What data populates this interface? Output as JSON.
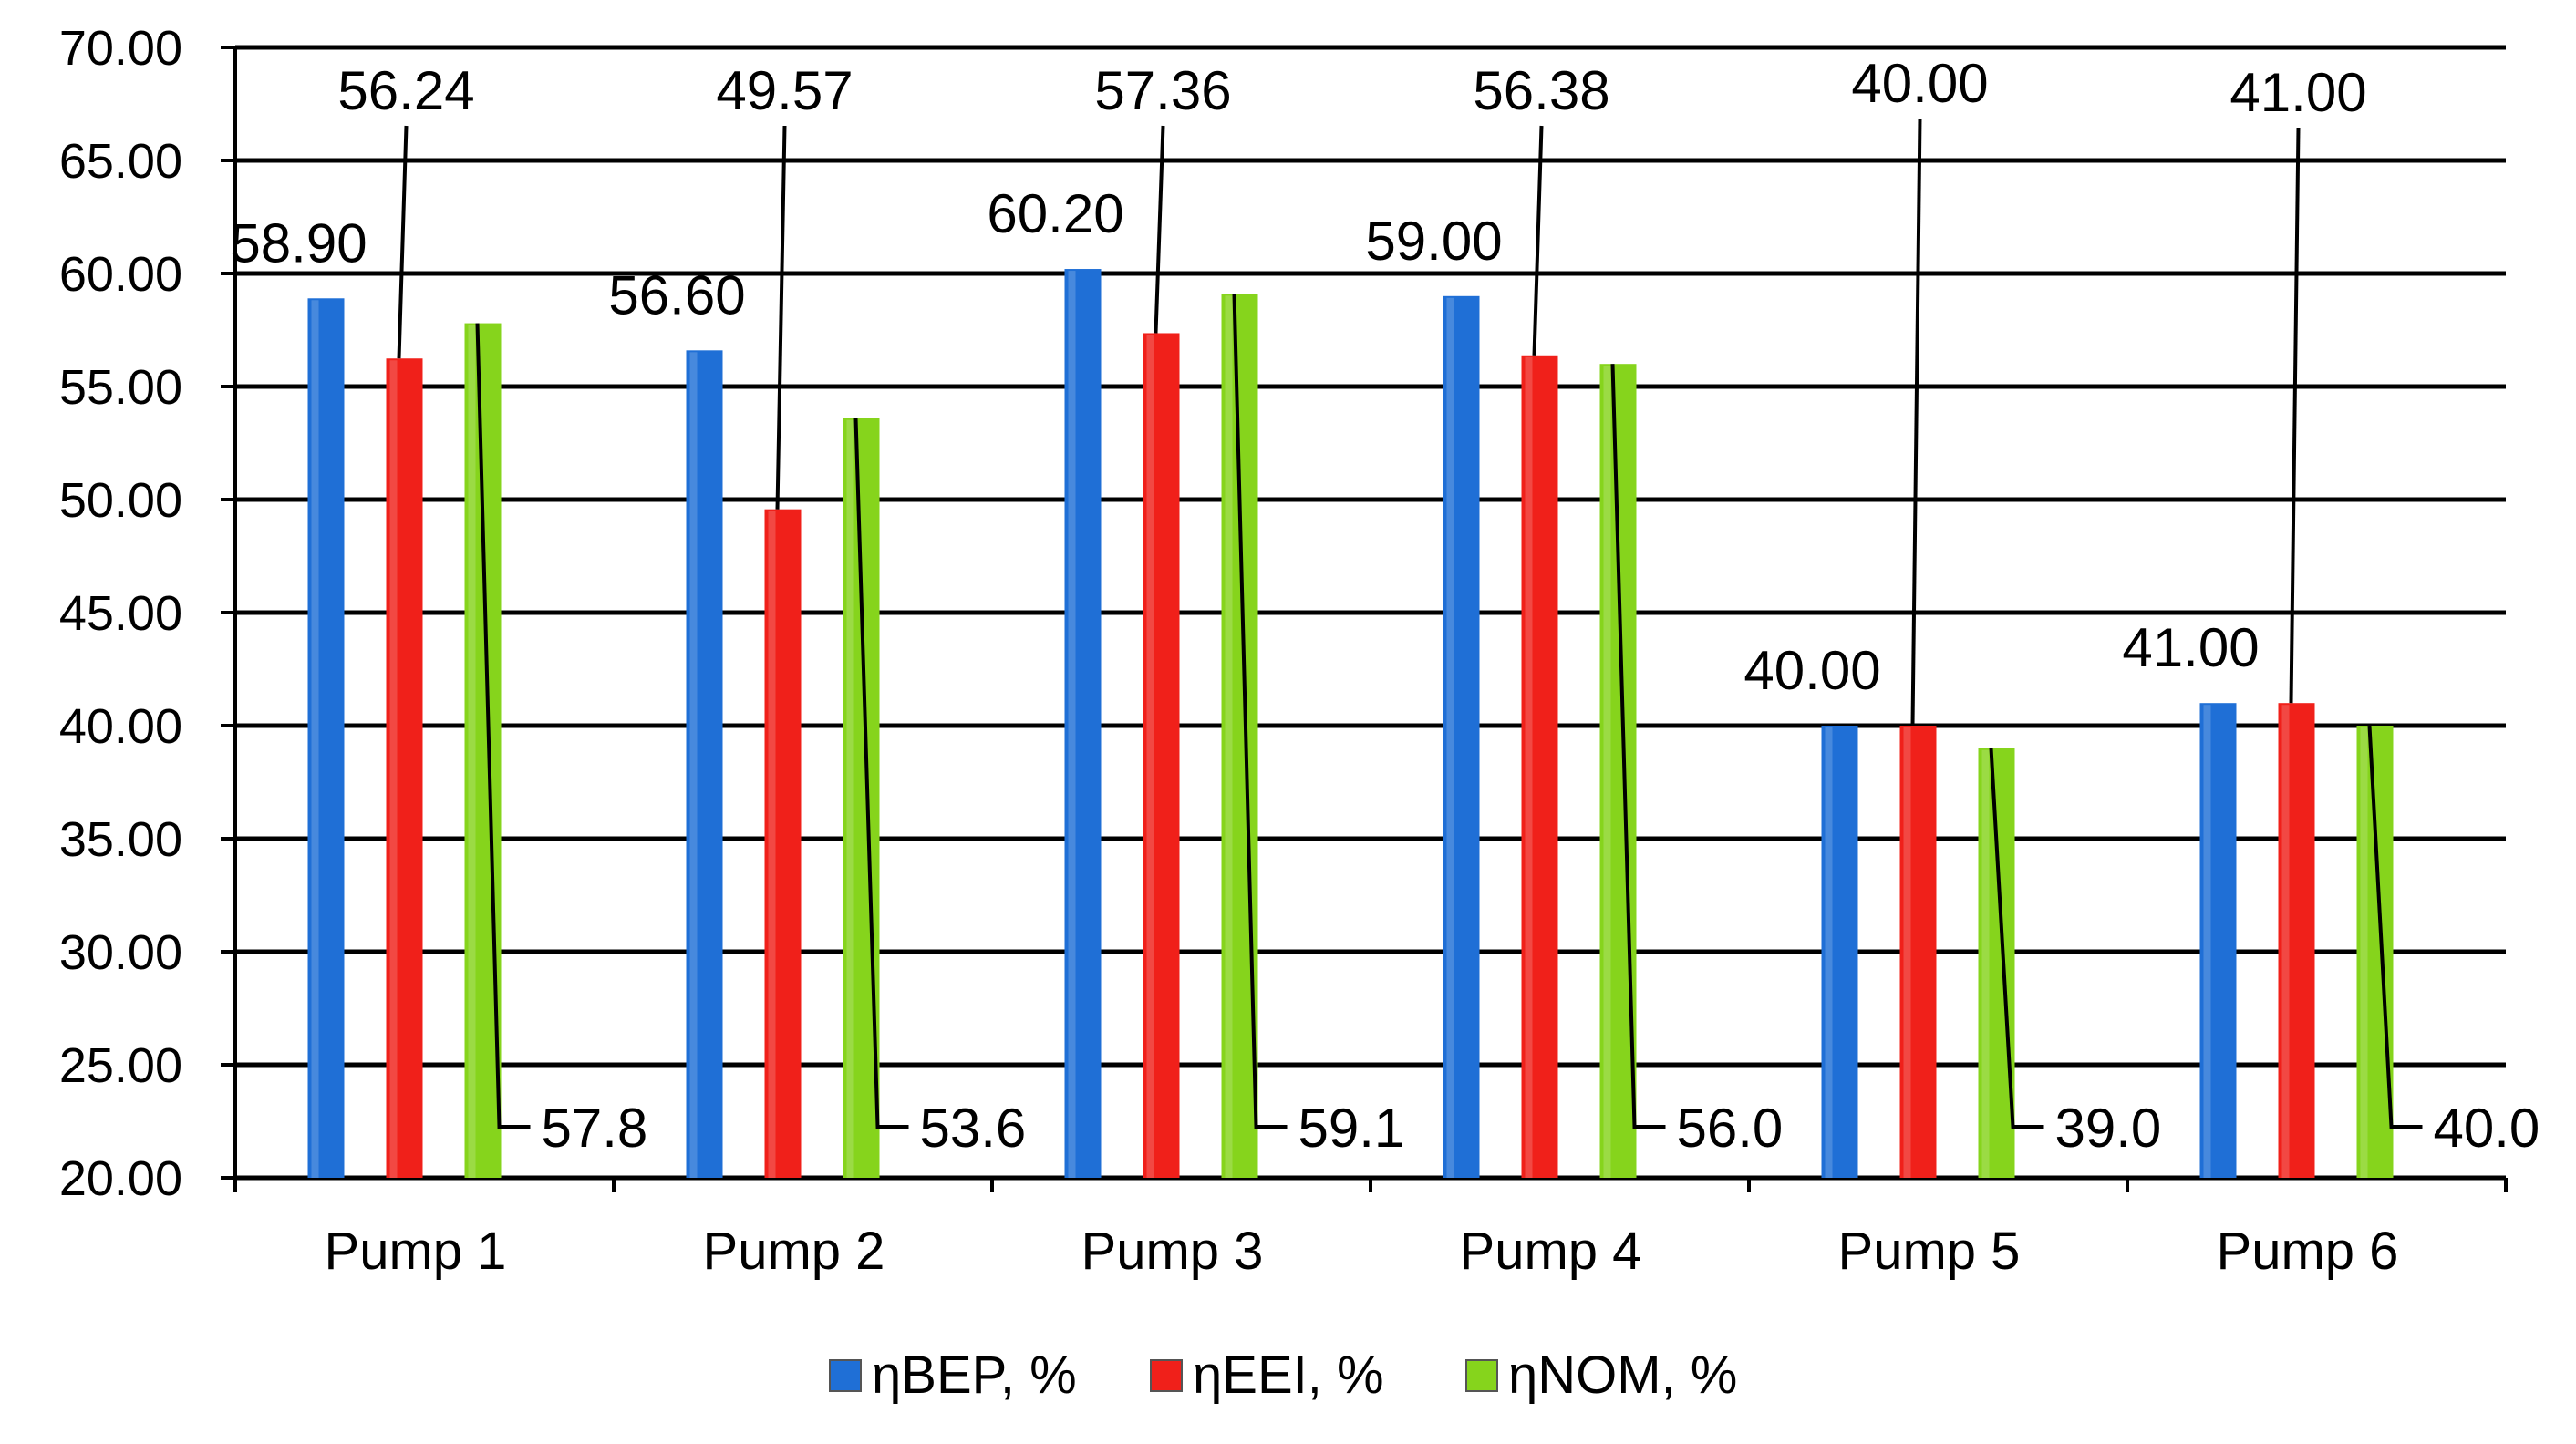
{
  "chart_data": {
    "type": "bar",
    "title": "",
    "xlabel": "",
    "ylabel": "",
    "ylim": [
      20,
      70
    ],
    "ytick_step": 5,
    "ytick_labels": [
      "20.00",
      "25.00",
      "30.00",
      "35.00",
      "40.00",
      "45.00",
      "50.00",
      "55.00",
      "60.00",
      "65.00",
      "70.00"
    ],
    "grid": true,
    "legend_position": "bottom",
    "categories": [
      "Pump 1",
      "Pump 2",
      "Pump 3",
      "Pump 4",
      "Pump 5",
      "Pump 6"
    ],
    "series": [
      {
        "name": "ηBEP, %",
        "color": "#1f6fd6",
        "values": [
          58.9,
          56.6,
          60.2,
          59.0,
          40.0,
          41.0
        ],
        "labels": [
          "58.90",
          "56.60",
          "60.20",
          "59.00",
          "40.00",
          "41.00"
        ]
      },
      {
        "name": "ηEEI, %",
        "color": "#f0201a",
        "values": [
          56.24,
          49.57,
          57.36,
          56.38,
          40.0,
          41.0
        ],
        "labels": [
          "56.24",
          "49.57",
          "57.36",
          "56.38",
          "40.00",
          "41.00"
        ]
      },
      {
        "name": "ηNOM, %",
        "color": "#86d41c",
        "values": [
          57.8,
          53.6,
          59.1,
          56.0,
          39.0,
          40.0
        ],
        "labels": [
          "57.8",
          "53.6",
          "59.1",
          "56.0",
          "39.0",
          "40.0"
        ]
      }
    ]
  }
}
